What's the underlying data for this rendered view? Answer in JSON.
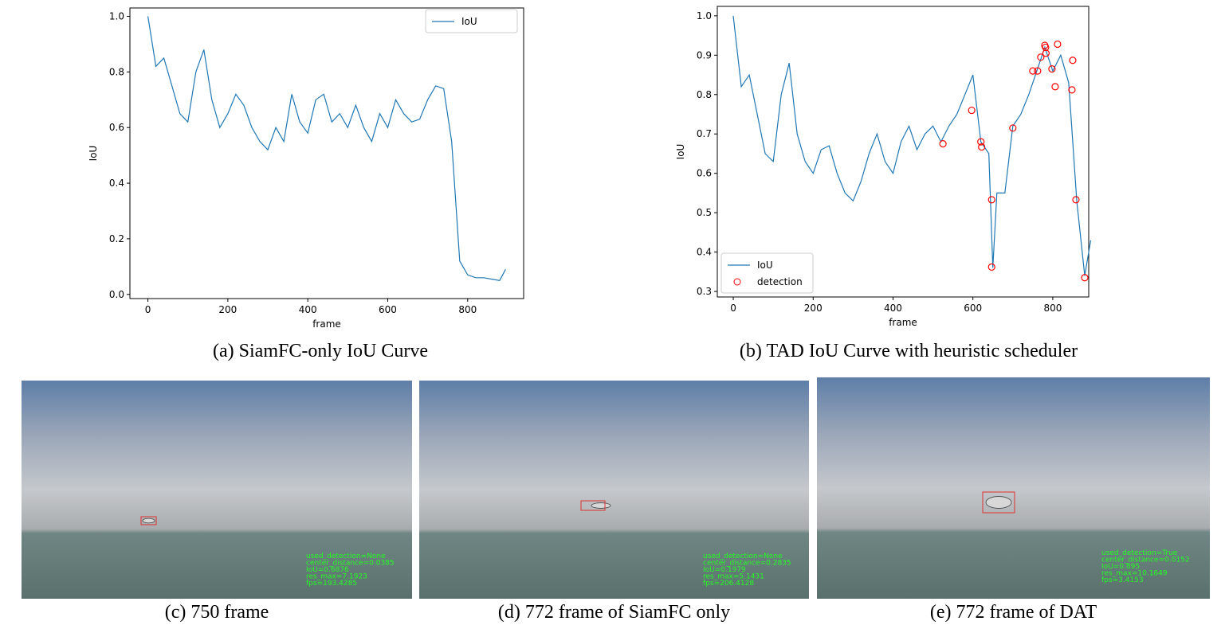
{
  "chart_data": [
    {
      "type": "line",
      "caption": "(a) SiamFC-only IoU Curve",
      "x_label": "frame",
      "y_label": "IoU",
      "x": [
        0,
        20,
        40,
        60,
        80,
        100,
        120,
        140,
        160,
        180,
        200,
        220,
        240,
        260,
        280,
        300,
        320,
        340,
        360,
        380,
        400,
        420,
        440,
        460,
        480,
        500,
        520,
        540,
        560,
        580,
        600,
        620,
        640,
        660,
        680,
        700,
        720,
        740,
        760,
        780,
        800,
        820,
        840,
        860,
        880,
        895
      ],
      "series": [
        {
          "name": "IoU",
          "color": "#1f77b4",
          "values": [
            1.0,
            0.82,
            0.85,
            0.75,
            0.65,
            0.62,
            0.8,
            0.88,
            0.7,
            0.6,
            0.65,
            0.72,
            0.68,
            0.6,
            0.55,
            0.52,
            0.6,
            0.55,
            0.72,
            0.62,
            0.58,
            0.7,
            0.72,
            0.62,
            0.65,
            0.6,
            0.68,
            0.6,
            0.55,
            0.65,
            0.6,
            0.7,
            0.65,
            0.62,
            0.63,
            0.7,
            0.75,
            0.74,
            0.55,
            0.12,
            0.07,
            0.06,
            0.06,
            0.055,
            0.05,
            0.09
          ]
        }
      ],
      "xlim": [
        -45,
        940
      ],
      "ylim": [
        -0.015,
        1.03
      ],
      "xticks": [
        0,
        200,
        400,
        600,
        800
      ],
      "yticks": [
        {
          "value": 0,
          "label": "0.0"
        },
        0.2,
        0.4,
        0.6,
        0.8,
        {
          "value": 1,
          "label": "1.0"
        }
      ],
      "legend": "upper right"
    },
    {
      "type": "line",
      "caption": "(b) TAD IoU Curve with heuristic scheduler",
      "x_label": "frame",
      "y_label": "IoU",
      "x": [
        0,
        20,
        40,
        60,
        80,
        100,
        120,
        140,
        160,
        180,
        200,
        220,
        240,
        260,
        280,
        300,
        320,
        340,
        360,
        380,
        400,
        420,
        440,
        460,
        480,
        500,
        520,
        540,
        560,
        580,
        600,
        620,
        640,
        650,
        660,
        680,
        700,
        720,
        740,
        760,
        780,
        800,
        820,
        840,
        860,
        880,
        895
      ],
      "series": [
        {
          "name": "IoU",
          "color": "#1f77b4",
          "values": [
            1.0,
            0.82,
            0.85,
            0.75,
            0.65,
            0.63,
            0.8,
            0.88,
            0.7,
            0.63,
            0.6,
            0.66,
            0.67,
            0.6,
            0.55,
            0.53,
            0.58,
            0.65,
            0.7,
            0.63,
            0.6,
            0.68,
            0.72,
            0.66,
            0.7,
            0.72,
            0.68,
            0.72,
            0.75,
            0.8,
            0.85,
            0.68,
            0.65,
            0.36,
            0.55,
            0.55,
            0.72,
            0.75,
            0.8,
            0.86,
            0.92,
            0.86,
            0.9,
            0.83,
            0.53,
            0.34,
            0.43
          ]
        },
        {
          "name": "detection",
          "type": "scatter",
          "color": "#ff0000",
          "x": [
            525,
            597,
            620,
            622,
            647,
            647,
            700,
            750,
            762,
            770,
            780,
            782,
            783,
            798,
            806,
            812,
            848,
            850,
            858,
            880
          ],
          "values": [
            0.675,
            0.76,
            0.68,
            0.667,
            0.533,
            0.362,
            0.715,
            0.86,
            0.86,
            0.895,
            0.925,
            0.92,
            0.905,
            0.865,
            0.82,
            0.928,
            0.812,
            0.887,
            0.533,
            0.335
          ]
        }
      ],
      "xlim": [
        -40,
        890
      ],
      "ylim": [
        0.286,
        1.024
      ],
      "xticks": [
        0,
        200,
        400,
        600,
        800
      ],
      "yticks": [
        0.3,
        0.4,
        0.5,
        0.6,
        0.7,
        0.8,
        0.9,
        {
          "value": 1,
          "label": "1.0"
        }
      ],
      "legend": "lower left"
    }
  ],
  "panels": [
    {
      "caption": "(c) 750 frame",
      "overlay": [
        "used_detection=None",
        "center_distance=0.0385",
        "IoU=0.6876",
        "res_max=7.1923",
        "fps=193.4285"
      ]
    },
    {
      "caption": "(d) 772 frame of SiamFC only",
      "overlay": [
        "used_detection=None",
        "center_distance=0.2835",
        "IoU=0.1979",
        "res_max=5.1431",
        "fps=206.4128"
      ]
    },
    {
      "caption": "(e) 772 frame of DAT",
      "overlay": [
        "used_detection=True",
        "center_distance=0.0152",
        "IoU=0.895",
        "res_max=10.1649",
        "fps=3.4153"
      ]
    }
  ]
}
